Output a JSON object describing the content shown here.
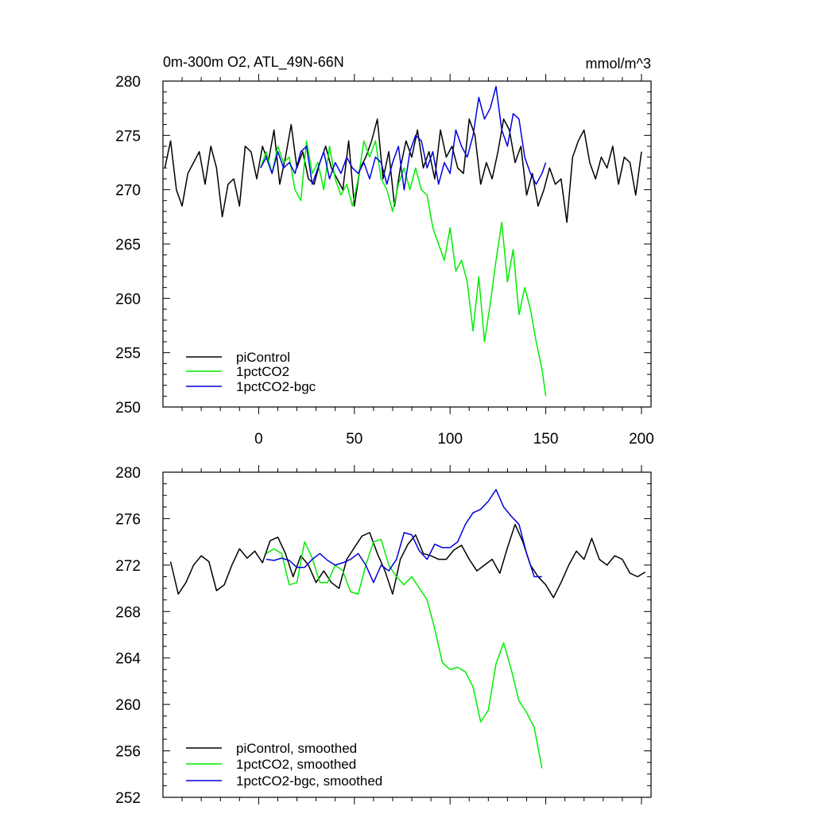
{
  "chart_data": [
    {
      "type": "line",
      "title": "0m-300m O2, ATL_49N-66N",
      "units": "mmol/m^3",
      "xlim": [
        -50,
        205
      ],
      "ylim": [
        250,
        280
      ],
      "x_ticks": [
        0,
        50,
        100,
        150,
        200
      ],
      "y_ticks": [
        250,
        255,
        260,
        265,
        270,
        275,
        280
      ],
      "legend_position": "bottom-left",
      "series": [
        {
          "name": "piControl",
          "color": "#000000",
          "x": [
            -49,
            -46,
            -43,
            -40,
            -37,
            -34,
            -31,
            -28,
            -25,
            -22,
            -19,
            -16,
            -13,
            -10,
            -7,
            -4,
            -1,
            2,
            5,
            8,
            11,
            14,
            17,
            20,
            23,
            26,
            29,
            32,
            35,
            38,
            41,
            44,
            47,
            50,
            53,
            56,
            59,
            62,
            65,
            68,
            71,
            74,
            77,
            80,
            83,
            86,
            89,
            92,
            95,
            98,
            101,
            104,
            107,
            110,
            113,
            116,
            119,
            122,
            125,
            128,
            131,
            134,
            137,
            140,
            143,
            146,
            149,
            152,
            155,
            158,
            161,
            164,
            167,
            170,
            173,
            176,
            179,
            182,
            185,
            188,
            191,
            194,
            197,
            200
          ],
          "values": [
            272.0,
            274.5,
            270.0,
            268.5,
            271.5,
            272.5,
            273.5,
            270.5,
            274.0,
            272.0,
            267.5,
            270.5,
            271.0,
            268.5,
            274.0,
            273.5,
            271.0,
            274.0,
            272.5,
            275.5,
            270.5,
            273.0,
            276.0,
            272.0,
            273.5,
            271.0,
            270.5,
            272.5,
            274.0,
            272.0,
            271.0,
            270.0,
            274.5,
            268.5,
            272.0,
            273.0,
            274.5,
            276.5,
            271.0,
            273.5,
            268.5,
            272.0,
            274.5,
            273.0,
            275.5,
            272.0,
            273.5,
            271.0,
            275.5,
            273.0,
            274.0,
            272.0,
            271.5,
            276.5,
            275.0,
            270.5,
            272.5,
            271.0,
            273.5,
            276.5,
            275.5,
            272.5,
            274.0,
            269.5,
            271.5,
            268.5,
            270.0,
            272.0,
            270.5,
            271.0,
            267.0,
            273.0,
            274.5,
            275.5,
            272.5,
            271.0,
            273.0,
            272.0,
            274.0,
            270.5,
            273.0,
            272.5,
            269.5,
            273.5
          ]
        },
        {
          "name": "1pctCO2",
          "color": "#00ee00",
          "x": [
            1,
            4,
            7,
            10,
            13,
            16,
            19,
            22,
            25,
            28,
            31,
            34,
            37,
            40,
            43,
            46,
            49,
            52,
            55,
            58,
            61,
            64,
            67,
            70,
            73,
            76,
            79,
            82,
            85,
            88,
            91,
            94,
            97,
            100,
            103,
            106,
            109,
            112,
            115,
            118,
            121,
            124,
            127,
            130,
            133,
            136,
            139,
            142,
            145,
            148,
            150
          ],
          "values": [
            272.0,
            273.5,
            271.5,
            274.0,
            272.5,
            273.0,
            270.0,
            269.0,
            274.5,
            271.5,
            272.5,
            270.0,
            274.0,
            271.0,
            269.5,
            270.5,
            268.5,
            271.0,
            274.5,
            273.0,
            274.5,
            271.0,
            270.0,
            268.0,
            270.5,
            272.0,
            270.0,
            272.0,
            270.0,
            269.5,
            266.5,
            265.0,
            263.5,
            266.5,
            262.5,
            263.5,
            261.5,
            257.0,
            262.0,
            256.0,
            259.5,
            263.5,
            267.0,
            261.5,
            264.5,
            258.5,
            261.0,
            259.0,
            256.0,
            253.5,
            251.0
          ]
        },
        {
          "name": "1pctCO2-bgc",
          "color": "#0000dd",
          "x": [
            1,
            4,
            7,
            10,
            13,
            16,
            19,
            22,
            25,
            28,
            31,
            34,
            37,
            40,
            43,
            46,
            49,
            52,
            55,
            58,
            61,
            64,
            67,
            70,
            73,
            76,
            79,
            82,
            85,
            88,
            91,
            94,
            97,
            100,
            103,
            106,
            109,
            112,
            115,
            118,
            121,
            124,
            127,
            130,
            133,
            136,
            139,
            142,
            145,
            148,
            150
          ],
          "values": [
            272.0,
            273.0,
            271.5,
            273.5,
            272.0,
            272.5,
            271.5,
            273.5,
            274.0,
            270.5,
            272.0,
            273.5,
            271.0,
            272.5,
            271.5,
            273.0,
            272.0,
            271.5,
            272.5,
            271.0,
            273.0,
            272.5,
            270.5,
            272.5,
            274.0,
            270.0,
            273.5,
            275.0,
            274.5,
            272.0,
            273.5,
            270.5,
            272.5,
            271.5,
            275.5,
            274.0,
            273.0,
            275.0,
            278.5,
            276.5,
            277.5,
            279.5,
            275.5,
            274.0,
            277.0,
            276.5,
            273.0,
            271.5,
            270.5,
            271.5,
            272.5
          ]
        }
      ]
    },
    {
      "type": "line",
      "title": "",
      "xlim": [
        -50,
        205
      ],
      "ylim": [
        252,
        280
      ],
      "y_ticks": [
        252,
        256,
        260,
        264,
        268,
        272,
        276,
        280
      ],
      "legend_position": "bottom-left",
      "series": [
        {
          "name": "piControl, smoothed",
          "color": "#000000",
          "x": [
            -46,
            -42,
            -38,
            -34,
            -30,
            -26,
            -22,
            -18,
            -14,
            -10,
            -6,
            -2,
            2,
            6,
            10,
            14,
            18,
            22,
            26,
            30,
            34,
            38,
            42,
            46,
            50,
            54,
            58,
            62,
            66,
            70,
            74,
            78,
            82,
            86,
            90,
            94,
            98,
            102,
            106,
            110,
            114,
            118,
            122,
            126,
            130,
            134,
            138,
            142,
            146,
            150,
            154,
            158,
            162,
            166,
            170,
            174,
            178,
            182,
            186,
            190,
            194,
            198,
            202
          ],
          "values": [
            272.3,
            269.5,
            270.5,
            272.0,
            272.8,
            272.3,
            269.8,
            270.3,
            272.0,
            273.4,
            272.6,
            273.2,
            272.2,
            274.1,
            274.4,
            273.0,
            271.0,
            272.8,
            272.0,
            270.5,
            271.5,
            270.5,
            270.0,
            272.5,
            273.5,
            274.5,
            274.8,
            273.0,
            271.5,
            269.5,
            272.5,
            273.8,
            274.6,
            273.0,
            272.8,
            272.5,
            272.5,
            273.3,
            273.7,
            272.5,
            271.5,
            272.0,
            272.5,
            271.3,
            273.5,
            275.5,
            274.0,
            272.0,
            271.0,
            270.3,
            269.2,
            270.5,
            272.0,
            273.2,
            272.5,
            274.3,
            272.5,
            272.0,
            272.8,
            272.5,
            271.3,
            271.0,
            271.4
          ]
        },
        {
          "name": "1pctCO2, smoothed",
          "color": "#00ee00",
          "x": [
            4,
            8,
            12,
            16,
            20,
            24,
            28,
            32,
            36,
            40,
            44,
            48,
            52,
            56,
            60,
            64,
            68,
            72,
            76,
            80,
            84,
            88,
            92,
            96,
            100,
            104,
            108,
            112,
            116,
            120,
            124,
            128,
            132,
            136,
            140,
            144,
            148
          ],
          "values": [
            273.0,
            273.4,
            273.0,
            270.3,
            270.5,
            274.0,
            272.6,
            270.5,
            270.5,
            272.0,
            271.5,
            269.7,
            269.5,
            272.0,
            274.0,
            274.2,
            272.0,
            271.0,
            270.3,
            271.0,
            270.0,
            269.0,
            266.5,
            263.6,
            263.0,
            263.2,
            262.8,
            261.5,
            258.5,
            259.5,
            263.5,
            265.3,
            263.0,
            260.3,
            259.3,
            258.0,
            254.5
          ]
        },
        {
          "name": "1pctCO2-bgc, smoothed",
          "color": "#0000dd",
          "x": [
            4,
            8,
            12,
            16,
            20,
            24,
            28,
            32,
            36,
            40,
            44,
            48,
            52,
            56,
            60,
            64,
            68,
            72,
            76,
            80,
            84,
            88,
            92,
            96,
            100,
            104,
            108,
            112,
            116,
            120,
            124,
            128,
            132,
            136,
            140,
            144,
            148
          ],
          "values": [
            272.5,
            272.4,
            272.6,
            272.4,
            271.8,
            271.8,
            272.5,
            273.0,
            272.4,
            272.0,
            272.2,
            272.5,
            273.0,
            272.0,
            270.5,
            272.0,
            271.5,
            272.5,
            274.8,
            274.6,
            273.2,
            272.5,
            273.8,
            273.5,
            273.5,
            274.0,
            275.5,
            276.5,
            276.8,
            277.5,
            278.5,
            277.0,
            276.2,
            275.5,
            273.0,
            271.0,
            271.0
          ]
        }
      ]
    }
  ]
}
